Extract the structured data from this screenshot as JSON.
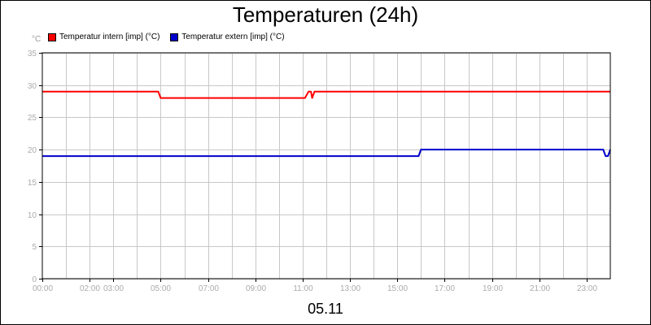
{
  "chart_data": {
    "type": "line",
    "title": "Temperaturen (24h)",
    "ylabel": "°C",
    "xlabel": "05.11",
    "ylim": [
      0,
      35
    ],
    "xlim": [
      0,
      24
    ],
    "grid": true,
    "legend_position": "top-left",
    "y_ticks": [
      "0",
      "5",
      "10",
      "15",
      "20",
      "25",
      "30",
      "35"
    ],
    "x_ticks": [
      {
        "label": "00:00",
        "hour": 0
      },
      {
        "label": "02:00",
        "hour": 2
      },
      {
        "label": "03:00",
        "hour": 3
      },
      {
        "label": "05:00",
        "hour": 5
      },
      {
        "label": "07:00",
        "hour": 7
      },
      {
        "label": "09:00",
        "hour": 9
      },
      {
        "label": "11:00",
        "hour": 11
      },
      {
        "label": "13:00",
        "hour": 13
      },
      {
        "label": "15:00",
        "hour": 15
      },
      {
        "label": "17:00",
        "hour": 17
      },
      {
        "label": "19:00",
        "hour": 19
      },
      {
        "label": "21:00",
        "hour": 21
      },
      {
        "label": "23:00",
        "hour": 23
      }
    ],
    "series": [
      {
        "name": "Temperatur intern [imp] (°C)",
        "color": "#ff0000",
        "x": [
          0,
          4.9,
          5.0,
          11.1,
          11.25,
          11.35,
          11.4,
          11.5,
          24
        ],
        "y": [
          29,
          29,
          28,
          28,
          29,
          29,
          28,
          29,
          29
        ]
      },
      {
        "name": "Temperatur extern [imp] (°C)",
        "color": "#0000cc",
        "x": [
          0,
          15.9,
          16.0,
          23.7,
          23.8,
          23.9,
          24
        ],
        "y": [
          19,
          19,
          20,
          20,
          19,
          19,
          20
        ]
      }
    ]
  }
}
